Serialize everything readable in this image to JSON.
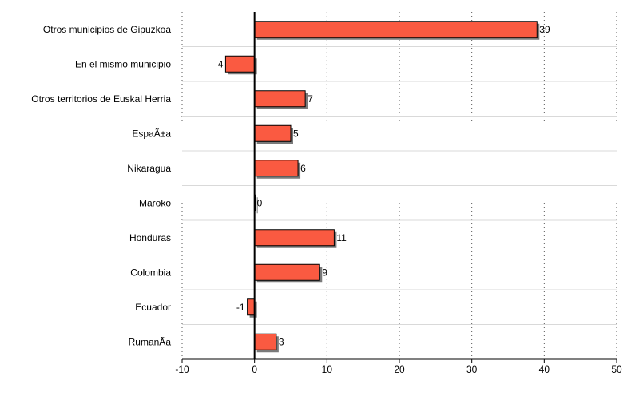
{
  "chart_data": {
    "type": "bar",
    "orientation": "horizontal",
    "title": "",
    "xlabel": "",
    "ylabel": "",
    "categories": [
      "Otros municipios de Gipuzkoa",
      "En el mismo municipio",
      "Otros territorios de Euskal Herria",
      "EspaÃ±a",
      "Nikaragua",
      "Maroko",
      "Honduras",
      "Colombia",
      "Ecuador",
      "RumanÃ­a"
    ],
    "values": [
      39,
      -4,
      7,
      5,
      6,
      0,
      11,
      9,
      -1,
      3
    ],
    "value_labels": [
      "39",
      "-4",
      "7",
      "5",
      "6",
      "0",
      "11",
      "9",
      "-1",
      "3"
    ],
    "xlim": [
      -10,
      50
    ],
    "xticks": [
      -10,
      0,
      10,
      20,
      30,
      40,
      50
    ],
    "xtick_labels": [
      "-10",
      "0",
      "10",
      "20",
      "30",
      "40",
      "50"
    ],
    "grid": "vertical dotted",
    "colors": {
      "bar_fill": "#fa5a41",
      "bar_stroke": "#000000",
      "bar_shadow": "#7a7a7a",
      "grid_dotted": "#555555",
      "row_separator": "#d9d9d9",
      "zero_line": "#000000"
    }
  }
}
